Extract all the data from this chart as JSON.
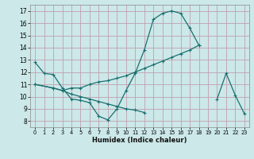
{
  "xlabel": "Humidex (Indice chaleur)",
  "bg_color": "#cce8e8",
  "grid_color": "#c0a0b0",
  "line_color": "#1a7070",
  "xlim": [
    -0.5,
    23.5
  ],
  "ylim": [
    7.5,
    17.5
  ],
  "xticks": [
    0,
    1,
    2,
    3,
    4,
    5,
    6,
    7,
    8,
    9,
    10,
    11,
    12,
    13,
    14,
    15,
    16,
    17,
    18,
    19,
    20,
    21,
    22,
    23
  ],
  "yticks": [
    8,
    9,
    10,
    11,
    12,
    13,
    14,
    15,
    16,
    17
  ],
  "series": [
    {
      "x": [
        0,
        1,
        2,
        3,
        4,
        5,
        6,
        7,
        8,
        9,
        10,
        11,
        12,
        13,
        14,
        15,
        16,
        17,
        18
      ],
      "y": [
        12.8,
        11.9,
        11.8,
        10.7,
        9.8,
        9.7,
        9.5,
        8.4,
        8.1,
        9.0,
        10.5,
        11.9,
        13.8,
        16.3,
        16.8,
        17.0,
        16.8,
        15.6,
        14.2
      ]
    },
    {
      "x": [
        0,
        2,
        3,
        4,
        5,
        6,
        7,
        8,
        9,
        10,
        11,
        12,
        13,
        14,
        15,
        16,
        17,
        18
      ],
      "y": [
        11.0,
        10.7,
        10.5,
        10.7,
        10.7,
        11.0,
        11.2,
        11.3,
        11.5,
        11.7,
        12.0,
        12.3,
        12.6,
        12.9,
        13.2,
        13.5,
        13.8,
        14.2
      ]
    },
    {
      "x": [
        0,
        2,
        3,
        4,
        5,
        6,
        7,
        8,
        9,
        10,
        11,
        12
      ],
      "y": [
        11.0,
        10.7,
        10.5,
        10.2,
        10.0,
        9.8,
        9.6,
        9.4,
        9.2,
        9.0,
        8.9,
        8.7
      ]
    },
    {
      "x": [
        20,
        21,
        22,
        23
      ],
      "y": [
        9.8,
        11.9,
        10.1,
        8.6
      ]
    }
  ]
}
